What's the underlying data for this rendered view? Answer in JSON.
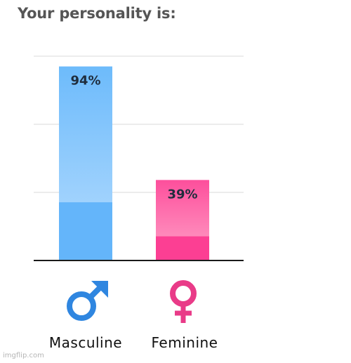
{
  "header": {
    "title": "Your personality is:"
  },
  "chart_data": {
    "type": "bar",
    "categories": [
      "Masculine",
      "Feminine"
    ],
    "values": [
      94,
      39
    ],
    "value_labels": [
      "94%",
      "39%"
    ],
    "ylim": [
      0,
      100
    ],
    "grid": true,
    "colors": {
      "masculine": {
        "base": "#64b5fa",
        "light": "#b6dcfe",
        "icon": "#2f86e0"
      },
      "feminine": {
        "base": "#fc3f93",
        "light": "#ffa3c8",
        "icon": "#e93b88"
      }
    }
  },
  "icons": {
    "masculine": "male-symbol-icon",
    "feminine": "female-symbol-icon"
  },
  "watermark": "imgflip.com"
}
